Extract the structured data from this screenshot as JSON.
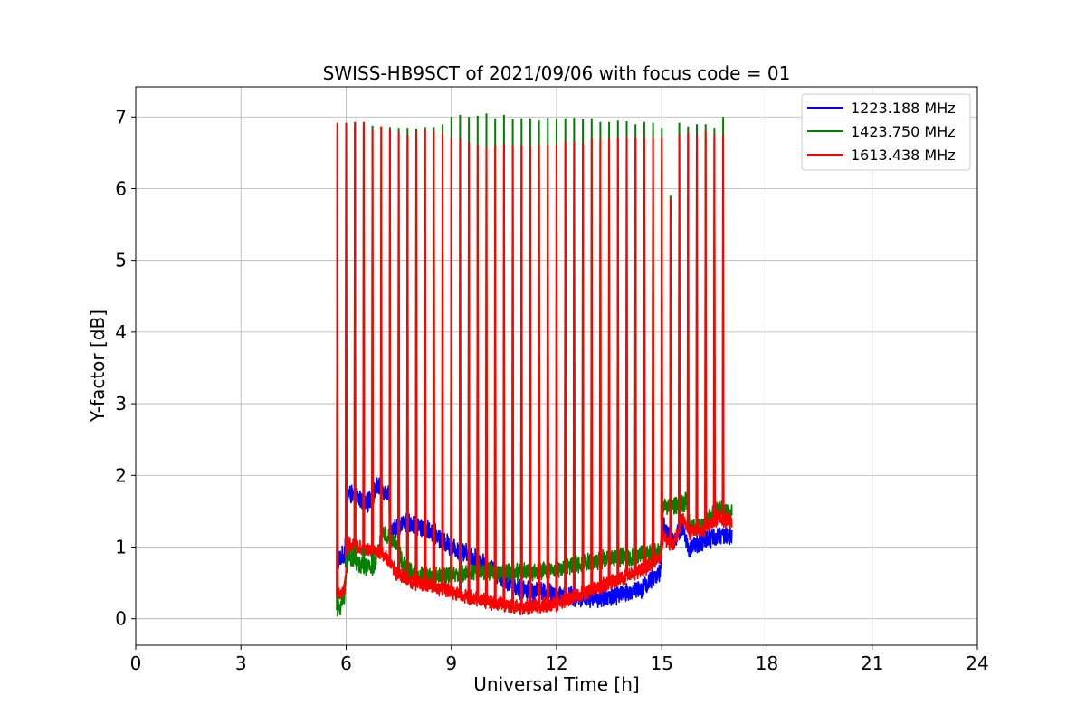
{
  "chart_data": {
    "type": "line",
    "title": "SWISS-HB9SCT of 2021/09/06 with focus code = 01",
    "xlabel": "Universal Time [h]",
    "ylabel": "Y-factor [dB]",
    "xlim": [
      0,
      24
    ],
    "ylim": [
      -0.37,
      7.42
    ],
    "xticks": [
      0,
      3,
      6,
      9,
      12,
      15,
      18,
      21,
      24
    ],
    "yticks": [
      0,
      1,
      2,
      3,
      4,
      5,
      6,
      7
    ],
    "grid": true,
    "legend_position": "top-right",
    "series": [
      {
        "name": "1223.188 MHz",
        "color": "#0000ff",
        "baseline": [
          [
            5.75,
            0.8
          ],
          [
            5.85,
            0.85
          ],
          [
            5.95,
            0.9
          ],
          [
            6.05,
            1.75
          ],
          [
            6.3,
            1.7
          ],
          [
            6.6,
            1.6
          ],
          [
            6.9,
            1.85
          ],
          [
            7.2,
            1.75
          ],
          [
            7.3,
            1.2
          ],
          [
            7.6,
            1.35
          ],
          [
            8.0,
            1.3
          ],
          [
            8.5,
            1.2
          ],
          [
            9.0,
            1.0
          ],
          [
            9.5,
            0.9
          ],
          [
            10.0,
            0.75
          ],
          [
            10.5,
            0.55
          ],
          [
            11.0,
            0.4
          ],
          [
            11.5,
            0.38
          ],
          [
            12.0,
            0.35
          ],
          [
            12.5,
            0.3
          ],
          [
            13.0,
            0.3
          ],
          [
            13.5,
            0.3
          ],
          [
            14.0,
            0.35
          ],
          [
            14.5,
            0.45
          ],
          [
            14.95,
            0.65
          ],
          [
            15.05,
            1.3
          ],
          [
            15.3,
            1.05
          ],
          [
            15.6,
            1.3
          ],
          [
            15.75,
            0.95
          ],
          [
            16.2,
            1.1
          ],
          [
            16.6,
            1.15
          ],
          [
            17.0,
            1.15
          ]
        ]
      },
      {
        "name": "1423.750 MHz",
        "color": "#008000",
        "baseline": [
          [
            5.75,
            0.1
          ],
          [
            5.95,
            0.3
          ],
          [
            6.05,
            0.9
          ],
          [
            6.4,
            0.75
          ],
          [
            6.8,
            0.7
          ],
          [
            7.0,
            1.2
          ],
          [
            7.3,
            1.1
          ],
          [
            7.5,
            1.0
          ],
          [
            7.6,
            0.75
          ],
          [
            8.0,
            0.6
          ],
          [
            8.5,
            0.6
          ],
          [
            9.0,
            0.6
          ],
          [
            9.5,
            0.65
          ],
          [
            10.0,
            0.65
          ],
          [
            10.5,
            0.65
          ],
          [
            11.0,
            0.65
          ],
          [
            11.5,
            0.65
          ],
          [
            12.0,
            0.7
          ],
          [
            12.5,
            0.75
          ],
          [
            13.0,
            0.8
          ],
          [
            13.5,
            0.85
          ],
          [
            14.0,
            0.85
          ],
          [
            14.5,
            0.9
          ],
          [
            14.95,
            0.95
          ],
          [
            15.05,
            1.55
          ],
          [
            15.5,
            1.6
          ],
          [
            15.75,
            1.65
          ],
          [
            15.8,
            1.25
          ],
          [
            16.2,
            1.3
          ],
          [
            16.6,
            1.55
          ],
          [
            17.0,
            1.45
          ]
        ]
      },
      {
        "name": "1613.438 MHz",
        "color": "#ff0000",
        "baseline": [
          [
            5.75,
            0.3
          ],
          [
            5.95,
            0.4
          ],
          [
            6.05,
            1.05
          ],
          [
            6.4,
            1.0
          ],
          [
            6.8,
            0.9
          ],
          [
            7.0,
            0.95
          ],
          [
            7.3,
            0.75
          ],
          [
            7.5,
            0.6
          ],
          [
            8.0,
            0.5
          ],
          [
            8.5,
            0.45
          ],
          [
            9.0,
            0.38
          ],
          [
            9.5,
            0.3
          ],
          [
            10.0,
            0.25
          ],
          [
            10.5,
            0.2
          ],
          [
            11.0,
            0.15
          ],
          [
            11.5,
            0.18
          ],
          [
            12.0,
            0.2
          ],
          [
            12.5,
            0.3
          ],
          [
            13.0,
            0.4
          ],
          [
            13.5,
            0.5
          ],
          [
            14.0,
            0.6
          ],
          [
            14.5,
            0.7
          ],
          [
            14.95,
            0.85
          ],
          [
            15.05,
            1.15
          ],
          [
            15.3,
            1.0
          ],
          [
            15.6,
            1.4
          ],
          [
            15.75,
            1.2
          ],
          [
            16.2,
            1.25
          ],
          [
            16.6,
            1.4
          ],
          [
            17.0,
            1.35
          ]
        ]
      }
    ],
    "spikes": {
      "times": [
        5.75,
        6.0,
        6.25,
        6.5,
        6.75,
        7.0,
        7.25,
        7.5,
        7.75,
        8.0,
        8.25,
        8.5,
        8.75,
        9.0,
        9.25,
        9.5,
        9.75,
        10.0,
        10.25,
        10.5,
        10.75,
        11.0,
        11.25,
        11.5,
        11.75,
        12.0,
        12.25,
        12.5,
        12.75,
        13.0,
        13.25,
        13.5,
        13.75,
        14.0,
        14.25,
        14.5,
        14.75,
        15.0,
        15.25,
        15.5,
        15.75,
        16.0,
        16.25,
        16.5,
        16.75
      ],
      "green_peaks": [
        6.9,
        6.9,
        6.9,
        6.9,
        6.88,
        6.87,
        6.86,
        6.85,
        6.85,
        6.84,
        6.86,
        6.86,
        6.9,
        7.0,
        7.03,
        7.0,
        7.02,
        7.05,
        6.98,
        7.03,
        6.97,
        6.98,
        6.98,
        6.95,
        6.99,
        6.98,
        6.98,
        6.99,
        6.97,
        6.98,
        6.93,
        6.93,
        6.95,
        6.94,
        6.9,
        6.93,
        6.92,
        6.85,
        5.9,
        6.92,
        6.87,
        6.9,
        6.9,
        6.85,
        7.0
      ],
      "red_peaks": [
        6.92,
        6.92,
        6.93,
        6.93,
        6.82,
        6.87,
        6.82,
        6.78,
        6.75,
        6.8,
        6.82,
        6.8,
        6.78,
        6.7,
        6.7,
        6.65,
        6.62,
        6.58,
        6.6,
        6.62,
        6.6,
        6.6,
        6.6,
        6.62,
        6.62,
        6.62,
        6.65,
        6.65,
        6.63,
        6.7,
        6.7,
        6.7,
        6.72,
        6.72,
        6.72,
        6.72,
        6.72,
        6.72,
        5.85,
        6.75,
        6.78,
        6.75,
        6.8,
        6.75,
        6.75
      ]
    }
  }
}
